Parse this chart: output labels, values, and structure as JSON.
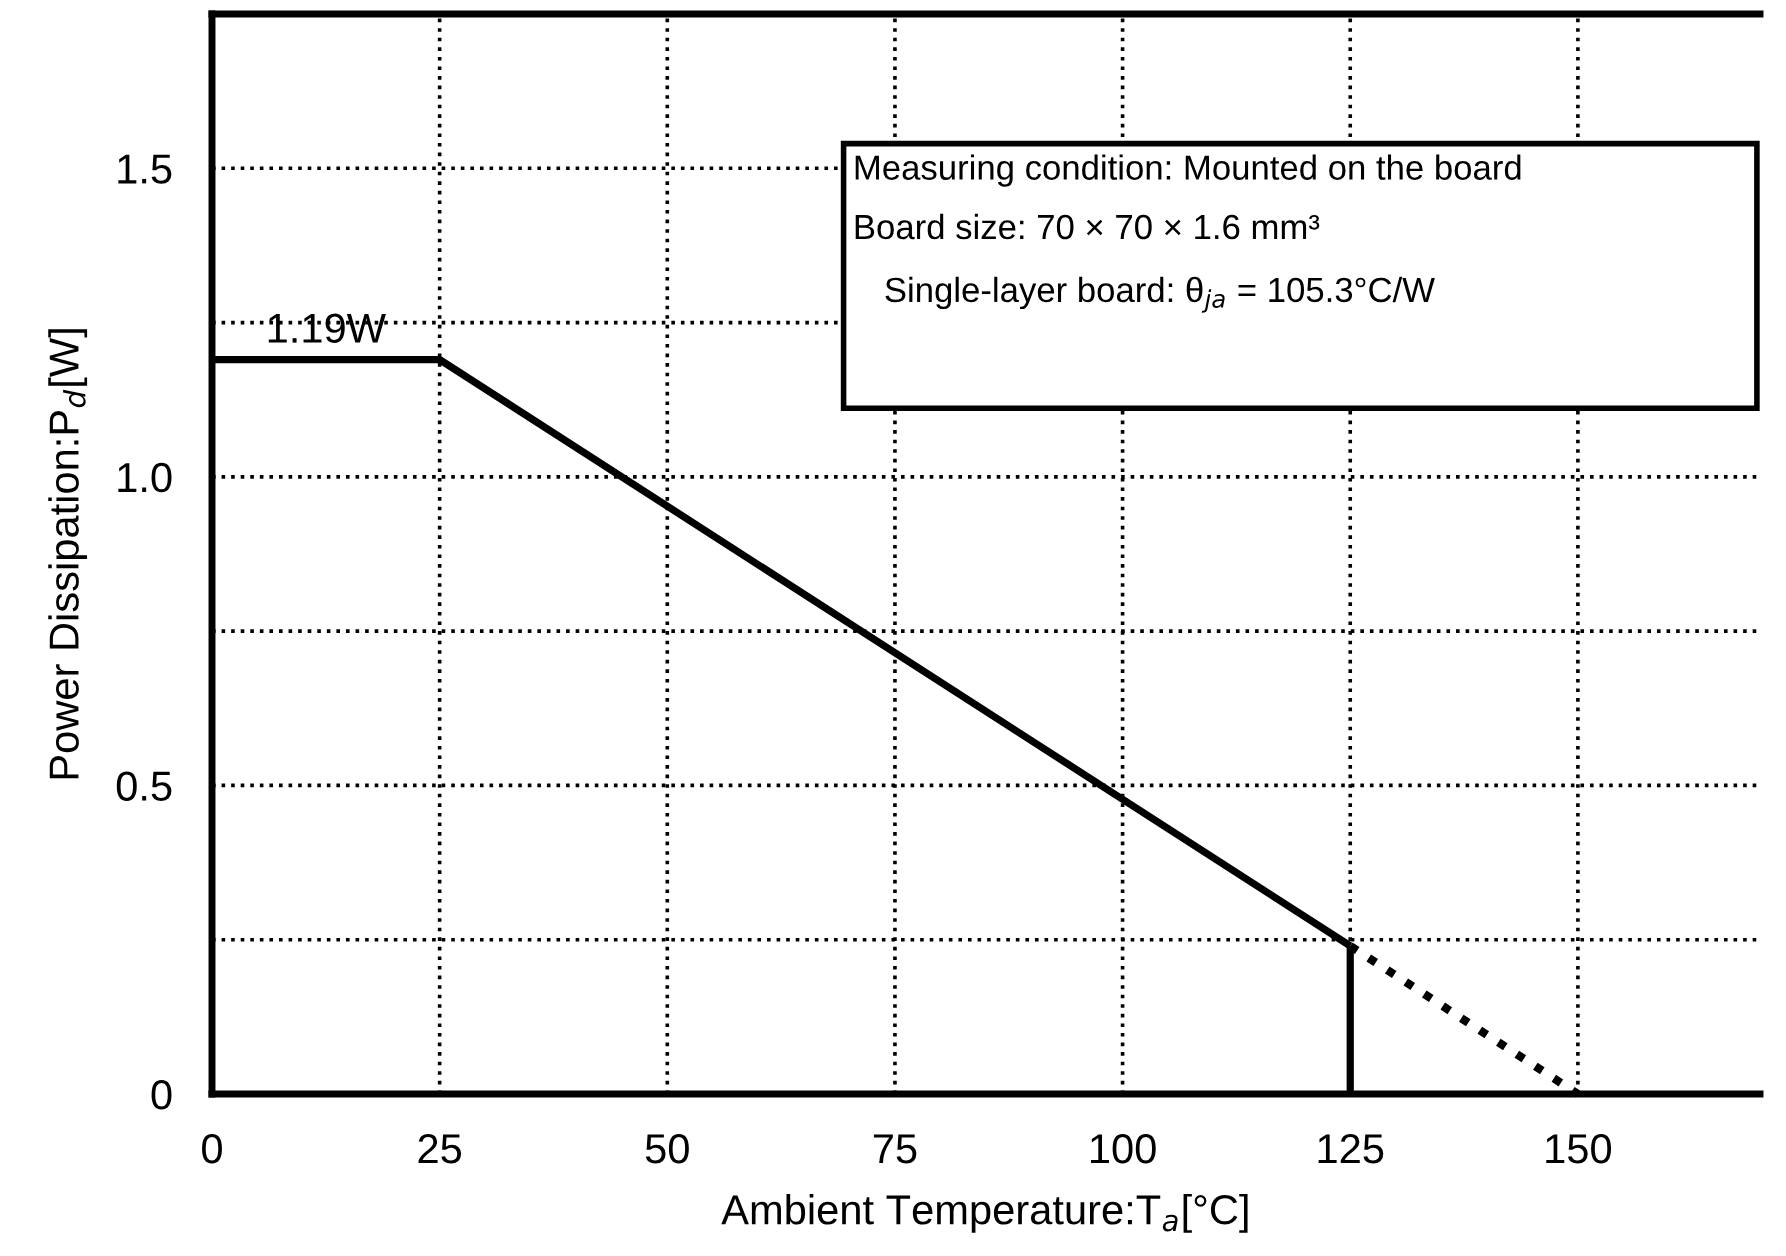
{
  "chart_data": {
    "type": "line",
    "xlabel": "Ambient Temperature:T$_{a}$[°C]",
    "ylabel": "Power Dissipation:P$_{d}$[W]",
    "xlim": [
      0,
      170
    ],
    "xticks": [
      0,
      25,
      50,
      75,
      100,
      125,
      150
    ],
    "ylim": [
      0,
      1.75
    ],
    "yticks": [
      0,
      {
        "value": 0.25,
        "label": null
      },
      0.5,
      {
        "value": 0.75,
        "label": null
      },
      {
        "value": 1.0,
        "label": "1.0"
      },
      {
        "value": 1.25,
        "label": null
      },
      1.5
    ],
    "grid": true,
    "legend": false,
    "marker": "none",
    "series": [
      {
        "color": "#000000",
        "x": [
          0,
          25,
          125
        ],
        "values": [
          1.19,
          1.19,
          0.24
        ],
        "line_style": "solid"
      },
      {
        "color": "#000000",
        "x": [
          125,
          125
        ],
        "values": [
          0,
          0.24
        ],
        "line_style": "solid"
      },
      {
        "color": "#000000",
        "x": [
          125,
          150
        ],
        "values": [
          0.24,
          0
        ],
        "line_style": "dotted"
      }
    ],
    "annotations": [
      "Measuring condition: Mounted on the board",
      "Board size: 70 × 70 × 1.6 mm³",
      "Single-layer board: θ$_{ja}$ = 105.3°C/W",
      {
        "text": "1.19W",
        "x": 12.5,
        "y": 1.19
      }
    ]
  }
}
